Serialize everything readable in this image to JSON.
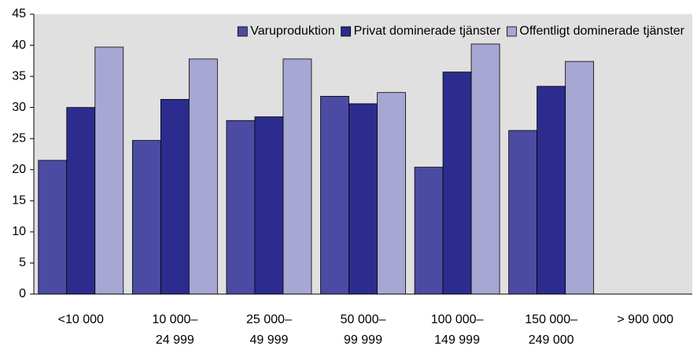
{
  "chart_data": {
    "type": "bar",
    "categories": [
      [
        "<10 000"
      ],
      [
        "10 000–",
        "24 999"
      ],
      [
        "25 000–",
        "49 999"
      ],
      [
        "50 000–",
        "99 999"
      ],
      [
        "100 000–",
        "149 999"
      ],
      [
        "150 000–",
        "249 000"
      ],
      [
        "> 900 000"
      ]
    ],
    "series": [
      {
        "name": "Varuproduktion",
        "color": "#4b4ba3",
        "values": [
          21.5,
          24.7,
          27.9,
          31.8,
          20.4,
          26.3,
          null
        ]
      },
      {
        "name": "Privat dominerade tjänster",
        "color": "#2c2c8e",
        "values": [
          30,
          31.3,
          28.5,
          30.6,
          35.7,
          33.4,
          null
        ]
      },
      {
        "name": "Offentligt dominerade tjänster",
        "color": "#a7a7d3",
        "values": [
          39.7,
          37.8,
          37.8,
          32.4,
          40.2,
          37.4,
          null
        ]
      }
    ],
    "ylim": [
      0,
      45
    ],
    "yticks": [
      0,
      5,
      10,
      15,
      20,
      25,
      30,
      35,
      40,
      45
    ],
    "legend": "top-right",
    "background": "#e0e0e0"
  }
}
